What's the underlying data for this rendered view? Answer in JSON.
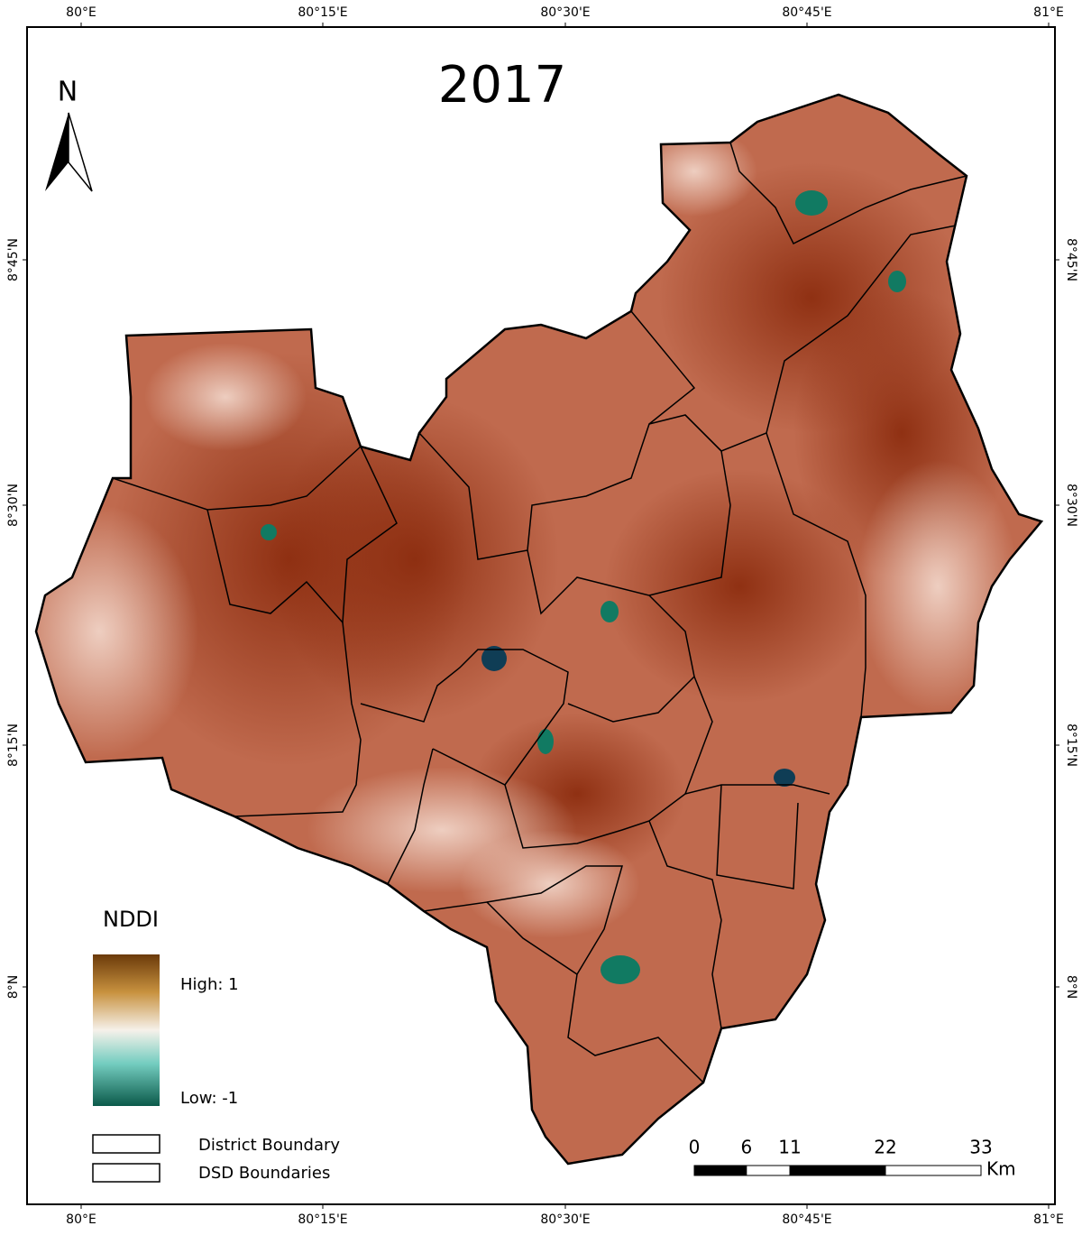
{
  "title": "2017",
  "north_label": "N",
  "graticule": {
    "top": [
      "80°E",
      "80°15'E",
      "80°30'E",
      "80°45'E",
      "81°E"
    ],
    "bottom": [
      "80°E",
      "80°15'E",
      "80°30'E",
      "80°45'E",
      "81°E"
    ],
    "left": [
      "8°45'N",
      "8°30'N",
      "8°15'N",
      "8°N"
    ],
    "right": [
      "8°45'N",
      "8°30'N",
      "8°15'N",
      "8°N"
    ]
  },
  "legend": {
    "title": "NDDI",
    "high": "High: 1",
    "low": "Low: -1",
    "items": [
      "District Boundary",
      "DSD Boundaries"
    ]
  },
  "scale_bar": {
    "ticks": [
      0,
      6,
      11,
      22,
      33
    ],
    "unit": "Km"
  }
}
